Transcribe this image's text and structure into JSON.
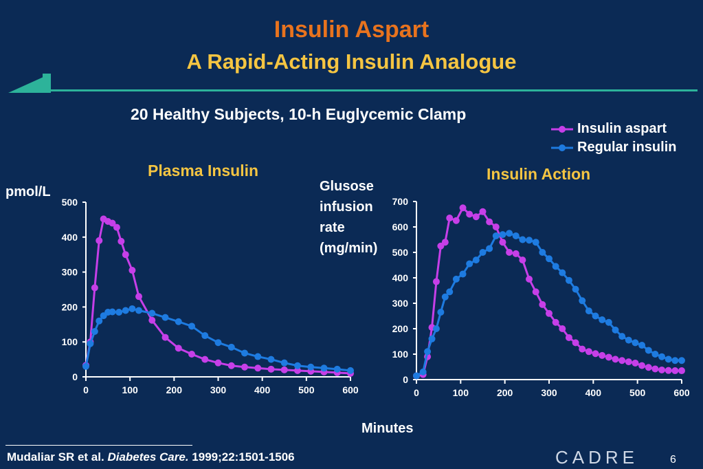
{
  "slide": {
    "title": "Insulin Aspart",
    "subtitle": "A Rapid-Acting Insulin Analogue",
    "study": "20 Healthy Subjects, 10-h Euglycemic Clamp",
    "x_label": "Minutes",
    "citation_prefix": "Mudaliar SR et al. ",
    "citation_journal": "Diabetes Care.",
    "citation_suffix": " 1999;22:1501-1506",
    "logo": "CADRE",
    "page_number": "6"
  },
  "legend": [
    {
      "name": "Insulin aspart",
      "color": "#c63fe8"
    },
    {
      "name": "Regular insulin",
      "color": "#1e7be0"
    }
  ],
  "chart_data": [
    {
      "type": "line",
      "title": "Plasma Insulin",
      "ylabel": "pmol/L",
      "xlabel": "Minutes",
      "xlim": [
        0,
        600
      ],
      "ylim": [
        0,
        500
      ],
      "xticks": [
        0,
        100,
        200,
        300,
        400,
        500,
        600
      ],
      "yticks": [
        0,
        100,
        200,
        300,
        400,
        500
      ],
      "series": [
        {
          "name": "Insulin aspart",
          "color": "#c63fe8",
          "x": [
            0,
            10,
            20,
            30,
            40,
            50,
            60,
            70,
            80,
            90,
            105,
            120,
            150,
            180,
            210,
            240,
            270,
            300,
            330,
            360,
            390,
            420,
            450,
            480,
            510,
            540,
            570,
            600
          ],
          "y": [
            33,
            100,
            255,
            390,
            452,
            445,
            440,
            428,
            388,
            350,
            305,
            230,
            162,
            113,
            82,
            65,
            50,
            40,
            32,
            28,
            25,
            22,
            20,
            18,
            16,
            14,
            12,
            10
          ]
        },
        {
          "name": "Regular insulin",
          "color": "#1e7be0",
          "x": [
            0,
            10,
            20,
            30,
            40,
            50,
            60,
            75,
            90,
            105,
            120,
            150,
            180,
            210,
            240,
            270,
            300,
            330,
            360,
            390,
            420,
            450,
            480,
            510,
            540,
            570,
            600
          ],
          "y": [
            30,
            95,
            130,
            160,
            175,
            185,
            186,
            185,
            190,
            195,
            190,
            182,
            170,
            158,
            145,
            118,
            98,
            85,
            68,
            58,
            50,
            40,
            32,
            28,
            25,
            22,
            18
          ]
        }
      ]
    },
    {
      "type": "line",
      "title": "Insulin Action",
      "ylabel": "Glusose\ninfusion\nrate\n(mg/min)",
      "xlabel": "Minutes",
      "xlim": [
        0,
        600
      ],
      "ylim": [
        0,
        700
      ],
      "xticks": [
        0,
        100,
        200,
        300,
        400,
        500,
        600
      ],
      "yticks": [
        0,
        100,
        200,
        300,
        400,
        500,
        600,
        700
      ],
      "series": [
        {
          "name": "Insulin aspart",
          "color": "#c63fe8",
          "x": [
            0,
            15,
            25,
            35,
            45,
            55,
            65,
            75,
            90,
            105,
            120,
            135,
            150,
            165,
            180,
            195,
            210,
            225,
            240,
            255,
            270,
            285,
            300,
            315,
            330,
            345,
            360,
            375,
            390,
            405,
            420,
            435,
            450,
            465,
            480,
            495,
            510,
            525,
            540,
            555,
            570,
            585,
            600
          ],
          "y": [
            15,
            20,
            90,
            205,
            385,
            525,
            540,
            635,
            625,
            675,
            650,
            640,
            660,
            620,
            600,
            540,
            500,
            495,
            470,
            395,
            345,
            295,
            260,
            225,
            200,
            165,
            145,
            120,
            110,
            102,
            95,
            88,
            80,
            75,
            70,
            65,
            55,
            48,
            42,
            38,
            36,
            35,
            35
          ]
        },
        {
          "name": "Regular insulin",
          "color": "#1e7be0",
          "x": [
            0,
            15,
            25,
            35,
            45,
            55,
            65,
            75,
            90,
            105,
            120,
            135,
            150,
            165,
            180,
            195,
            210,
            225,
            240,
            255,
            270,
            285,
            300,
            315,
            330,
            345,
            360,
            375,
            390,
            405,
            420,
            435,
            450,
            465,
            480,
            495,
            510,
            525,
            540,
            555,
            570,
            585,
            600
          ],
          "y": [
            15,
            30,
            110,
            160,
            200,
            265,
            325,
            345,
            395,
            415,
            455,
            470,
            500,
            515,
            565,
            570,
            575,
            565,
            550,
            548,
            540,
            500,
            475,
            445,
            420,
            390,
            355,
            310,
            270,
            250,
            235,
            225,
            195,
            170,
            155,
            145,
            135,
            115,
            100,
            90,
            80,
            75,
            75
          ]
        }
      ]
    }
  ]
}
